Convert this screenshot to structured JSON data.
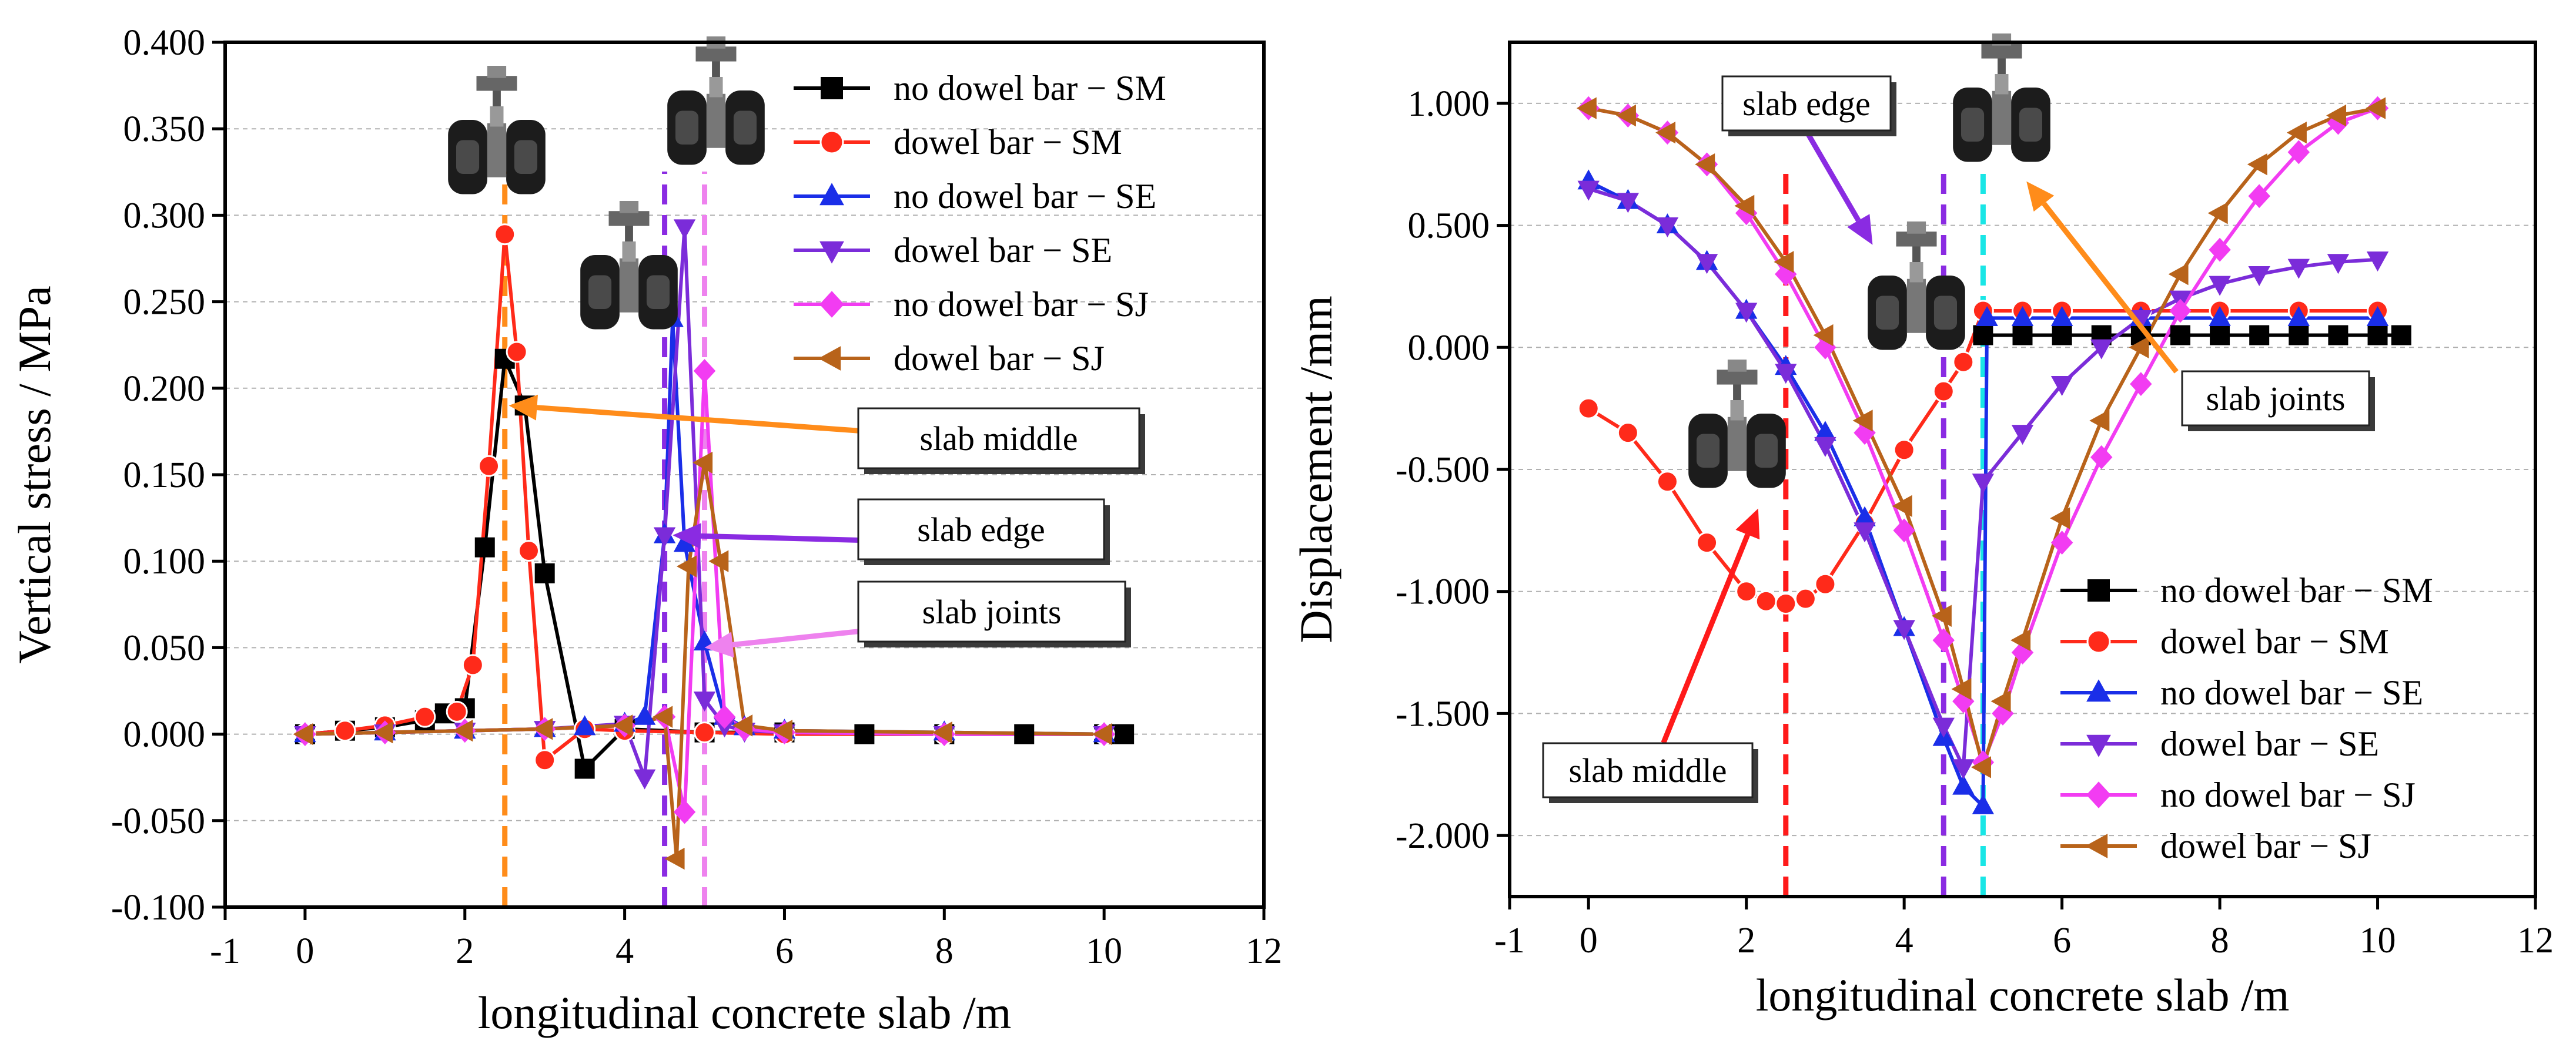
{
  "chart_data": [
    {
      "type": "line",
      "title": "",
      "xlabel": "longitudinal concrete  slab /m",
      "ylabel": "Vertical stress / MPa",
      "xlim": [
        -1,
        12
      ],
      "ylim": [
        -0.1,
        0.4
      ],
      "xticks": [
        -1,
        0,
        2,
        4,
        6,
        8,
        10,
        12
      ],
      "yticks": [
        -0.1,
        -0.05,
        0,
        0.05,
        0.1,
        0.15,
        0.2,
        0.25,
        0.3,
        0.35,
        0.4
      ],
      "y_tick_labels": [
        "-0.100",
        "-0.050",
        "0.000",
        "0.050",
        "0.100",
        "0.150",
        "0.200",
        "0.250",
        "0.300",
        "0.350",
        "0.400"
      ],
      "grid": "dashed horizontal",
      "legend": "top-right",
      "series": [
        {
          "name": "no dowel bar − SM",
          "color": "#000000",
          "marker": "square",
          "x": [
            0,
            0.5,
            1.0,
            1.5,
            1.75,
            2.0,
            2.25,
            2.5,
            2.75,
            3.0,
            3.5,
            4.0,
            5.0,
            6.0,
            7.0,
            8.0,
            9.0,
            10.0,
            10.25
          ],
          "y": [
            0.0,
            0.002,
            0.004,
            0.008,
            0.012,
            0.015,
            0.108,
            0.217,
            0.19,
            0.093,
            -0.02,
            0.003,
            0.001,
            0.001,
            0.0,
            0.0,
            0.0,
            0.0,
            0.0
          ]
        },
        {
          "name": "dowel bar − SM",
          "color": "#ff2a1a",
          "marker": "circle",
          "x": [
            0,
            0.5,
            1.0,
            1.5,
            1.9,
            2.1,
            2.3,
            2.5,
            2.65,
            2.8,
            3.0,
            3.5,
            4.0,
            5.0,
            6.0,
            8.0,
            10.0
          ],
          "y": [
            0.0,
            0.002,
            0.005,
            0.01,
            0.013,
            0.04,
            0.155,
            0.289,
            0.221,
            0.106,
            -0.015,
            0.003,
            0.002,
            0.001,
            0.0,
            0.0,
            0.0
          ]
        },
        {
          "name": "no dowel bar − SE",
          "color": "#1a2ee8",
          "marker": "triangle-up",
          "x": [
            0,
            1.0,
            2.0,
            3.0,
            3.5,
            4.0,
            4.25,
            4.5,
            4.6,
            4.75,
            5.0,
            5.25,
            5.5,
            6.0,
            8.0,
            10.0
          ],
          "y": [
            0.0,
            0.001,
            0.002,
            0.003,
            0.004,
            0.006,
            0.01,
            0.115,
            0.24,
            0.11,
            0.053,
            0.01,
            0.004,
            0.002,
            0.001,
            0.0
          ]
        },
        {
          "name": "dowel bar − SE",
          "color": "#7b2cd9",
          "marker": "triangle-down",
          "x": [
            0,
            1.0,
            2.0,
            3.0,
            4.0,
            4.25,
            4.5,
            4.75,
            5.0,
            5.25,
            5.5,
            6.0,
            8.0,
            10.0
          ],
          "y": [
            0.0,
            0.001,
            0.002,
            0.003,
            0.006,
            -0.025,
            0.115,
            0.293,
            0.02,
            0.005,
            0.002,
            0.001,
            0.0,
            0.0
          ]
        },
        {
          "name": "no dowel bar − SJ",
          "color": "#f23cf2",
          "marker": "diamond",
          "x": [
            0,
            1.0,
            2.0,
            3.0,
            4.0,
            4.5,
            4.75,
            5.0,
            5.25,
            5.5,
            6.0,
            8.0,
            10.0
          ],
          "y": [
            0.0,
            0.001,
            0.002,
            0.003,
            0.005,
            0.01,
            -0.045,
            0.21,
            0.01,
            0.003,
            0.001,
            0.0,
            0.0
          ]
        },
        {
          "name": "dowel bar − SJ",
          "color": "#b8631a",
          "marker": "triangle-left",
          "x": [
            0,
            1.0,
            2.0,
            3.0,
            4.0,
            4.5,
            4.65,
            4.8,
            5.0,
            5.2,
            5.5,
            6.0,
            8.0,
            10.0
          ],
          "y": [
            0.0,
            0.001,
            0.002,
            0.003,
            0.005,
            0.01,
            -0.072,
            0.097,
            0.157,
            0.1,
            0.005,
            0.002,
            0.001,
            0.0
          ]
        }
      ],
      "vlines": [
        {
          "x": 2.5,
          "color": "#ff8c1a"
        },
        {
          "x": 4.5,
          "color": "#8a2be2"
        },
        {
          "x": 5.0,
          "color": "#ee82ee"
        }
      ],
      "annotations": [
        {
          "text": "slab middle",
          "arrow_color": "#ff8c1a",
          "arrow_to": [
            2.55,
            0.19
          ],
          "arrow_from": [
            7.05,
            0.175
          ]
        },
        {
          "text": "slab edge",
          "arrow_color": "#8a2be2",
          "arrow_to": [
            4.6,
            0.115
          ],
          "arrow_from": [
            7.05,
            0.112
          ]
        },
        {
          "text": "slab joints",
          "arrow_color": "#ee82ee",
          "arrow_to": [
            5.0,
            0.05
          ],
          "arrow_from": [
            7.05,
            0.06
          ]
        }
      ]
    },
    {
      "type": "line",
      "title": "",
      "xlabel": "longitudinal concrete  slab /m",
      "ylabel": "Displacement /mm",
      "xlim": [
        -1,
        12
      ],
      "ylim": [
        -2.25,
        1.25
      ],
      "xticks": [
        -1,
        0,
        2,
        4,
        6,
        8,
        10,
        12
      ],
      "yticks": [
        -2.0,
        -1.5,
        -1.0,
        -0.5,
        0.0,
        0.5,
        1.0
      ],
      "y_tick_labels": [
        "-2.000",
        "-1.500",
        "-1.000",
        "-0.500",
        "0.000",
        "0.500",
        "1.000"
      ],
      "grid": "dashed horizontal",
      "legend": "bottom-right",
      "series": [
        {
          "name": "no dowel bar − SM",
          "color": "#000000",
          "marker": "square",
          "x": [
            5.0,
            5.5,
            6.0,
            6.5,
            7.0,
            7.5,
            8.0,
            8.5,
            9.0,
            9.5,
            10.0,
            10.3
          ],
          "y": [
            0.05,
            0.05,
            0.05,
            0.05,
            0.05,
            0.05,
            0.05,
            0.05,
            0.05,
            0.05,
            0.05,
            0.05
          ]
        },
        {
          "name": "dowel bar − SM",
          "color": "#ff2a1a",
          "marker": "circle",
          "x": [
            0,
            0.5,
            1.0,
            1.5,
            2.0,
            2.25,
            2.5,
            2.75,
            3.0,
            3.5,
            4.0,
            4.5,
            4.75,
            5.0,
            5.5,
            6.0,
            7.0,
            8.0,
            9.0,
            10.0
          ],
          "y": [
            -0.25,
            -0.35,
            -0.55,
            -0.8,
            -1.0,
            -1.04,
            -1.05,
            -1.03,
            -0.97,
            -0.72,
            -0.42,
            -0.18,
            -0.06,
            0.15,
            0.15,
            0.15,
            0.15,
            0.15,
            0.15,
            0.15
          ]
        },
        {
          "name": "no dowel bar − SE",
          "color": "#1a2ee8",
          "marker": "triangle-up",
          "x": [
            0,
            0.5,
            1.0,
            1.5,
            2.0,
            2.5,
            3.0,
            3.5,
            4.0,
            4.5,
            4.75,
            5.0,
            5.05,
            5.5,
            6.0,
            7.0,
            8.0,
            9.0,
            10.0
          ],
          "y": [
            0.68,
            0.6,
            0.5,
            0.35,
            0.15,
            -0.08,
            -0.35,
            -0.7,
            -1.15,
            -1.6,
            -1.8,
            -1.88,
            0.12,
            0.12,
            0.12,
            0.12,
            0.12,
            0.12,
            0.12
          ]
        },
        {
          "name": "dowel bar − SE",
          "color": "#7b2cd9",
          "marker": "triangle-down",
          "x": [
            0,
            0.5,
            1.0,
            1.5,
            2.0,
            2.5,
            3.0,
            3.5,
            4.0,
            4.5,
            4.75,
            5.0,
            5.5,
            6.0,
            6.5,
            7.0,
            7.5,
            8.0,
            8.5,
            9.0,
            9.5,
            10.0
          ],
          "y": [
            0.65,
            0.6,
            0.5,
            0.35,
            0.15,
            -0.1,
            -0.4,
            -0.75,
            -1.15,
            -1.55,
            -1.72,
            -0.55,
            -0.35,
            -0.15,
            0.0,
            0.12,
            0.2,
            0.26,
            0.3,
            0.33,
            0.35,
            0.36
          ]
        },
        {
          "name": "no dowel bar − SJ",
          "color": "#f23cf2",
          "marker": "diamond",
          "x": [
            0,
            0.5,
            1.0,
            1.5,
            2.0,
            2.5,
            3.0,
            3.5,
            4.0,
            4.5,
            4.75,
            5.0,
            5.25,
            5.5,
            6.0,
            6.5,
            7.0,
            7.5,
            8.0,
            8.5,
            9.0,
            9.5,
            10.0
          ],
          "y": [
            0.98,
            0.95,
            0.88,
            0.75,
            0.55,
            0.3,
            0.0,
            -0.35,
            -0.75,
            -1.2,
            -1.45,
            -1.7,
            -1.5,
            -1.25,
            -0.8,
            -0.45,
            -0.15,
            0.15,
            0.4,
            0.62,
            0.8,
            0.92,
            0.98
          ]
        },
        {
          "name": "dowel bar − SJ",
          "color": "#b8631a",
          "marker": "triangle-left",
          "x": [
            0,
            0.5,
            1.0,
            1.5,
            2.0,
            2.5,
            3.0,
            3.5,
            4.0,
            4.5,
            4.75,
            5.0,
            5.25,
            5.5,
            6.0,
            6.5,
            7.0,
            7.5,
            8.0,
            8.5,
            9.0,
            9.5,
            10.0
          ],
          "y": [
            0.98,
            0.95,
            0.88,
            0.75,
            0.58,
            0.35,
            0.05,
            -0.3,
            -0.65,
            -1.1,
            -1.4,
            -1.72,
            -1.45,
            -1.2,
            -0.7,
            -0.3,
            0.0,
            0.3,
            0.55,
            0.75,
            0.88,
            0.95,
            0.98
          ]
        }
      ],
      "vlines": [
        {
          "x": 2.5,
          "color": "#ff1a1a"
        },
        {
          "x": 4.5,
          "color": "#8a2be2"
        },
        {
          "x": 5.0,
          "color": "#19e6e6"
        }
      ],
      "annotations": [
        {
          "text": "slab edge",
          "arrow_color": "#8a2be2",
          "arrow_to": [
            3.6,
            0.42
          ],
          "arrow_from": [
            2.7,
            0.92
          ]
        },
        {
          "text": "slab middle",
          "arrow_color": "#ff1a1a",
          "arrow_to": [
            2.15,
            -0.66
          ],
          "arrow_from": [
            0.95,
            -1.62
          ]
        },
        {
          "text": "slab joints",
          "arrow_color": "#ff8c1a",
          "arrow_to": [
            5.55,
            0.68
          ],
          "arrow_from": [
            7.45,
            -0.1
          ]
        }
      ]
    }
  ],
  "images": [
    {
      "chart": 0,
      "name": "aircraft-landing-gear-image-1",
      "alt": "aircraft landing gear"
    },
    {
      "chart": 0,
      "name": "aircraft-landing-gear-image-2",
      "alt": "aircraft landing gear"
    },
    {
      "chart": 0,
      "name": "aircraft-landing-gear-image-3",
      "alt": "aircraft landing gear"
    },
    {
      "chart": 1,
      "name": "aircraft-landing-gear-image-4",
      "alt": "aircraft landing gear"
    },
    {
      "chart": 1,
      "name": "aircraft-landing-gear-image-5",
      "alt": "aircraft landing gear"
    },
    {
      "chart": 1,
      "name": "aircraft-landing-gear-image-6",
      "alt": "aircraft landing gear"
    }
  ]
}
